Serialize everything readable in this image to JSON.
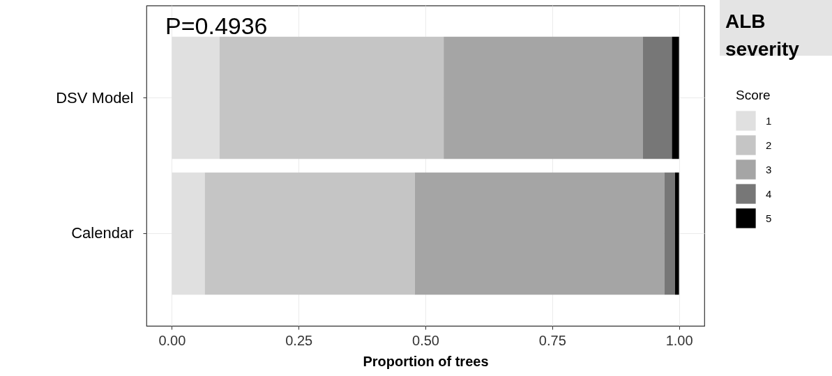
{
  "chart_data": {
    "type": "bar",
    "orientation": "horizontal",
    "stacked": true,
    "categories": [
      "DSV Model",
      "Calendar"
    ],
    "series": [
      {
        "name": "1",
        "color": "#e0e0e0",
        "values": [
          0.094,
          0.065
        ]
      },
      {
        "name": "2",
        "color": "#c5c5c5",
        "values": [
          0.442,
          0.414
        ]
      },
      {
        "name": "3",
        "color": "#a5a5a5",
        "values": [
          0.393,
          0.492
        ]
      },
      {
        "name": "4",
        "color": "#777777",
        "values": [
          0.057,
          0.021
        ]
      },
      {
        "name": "5",
        "color": "#000000",
        "values": [
          0.014,
          0.008
        ]
      }
    ],
    "xlabel": "Proportion of trees",
    "legend_title": "Score",
    "legend": "right",
    "xlim": [
      -0.05,
      1.05
    ],
    "xticks": [
      {
        "value": 0,
        "label": "0.00"
      },
      {
        "value": 0.25,
        "label": "0.25"
      },
      {
        "value": 0.5,
        "label": "0.50"
      },
      {
        "value": 0.75,
        "label": "0.75"
      },
      {
        "value": 1,
        "label": "1.00"
      }
    ],
    "grid": true,
    "annotations": [
      "P=0.4936",
      "ALB severity"
    ]
  }
}
